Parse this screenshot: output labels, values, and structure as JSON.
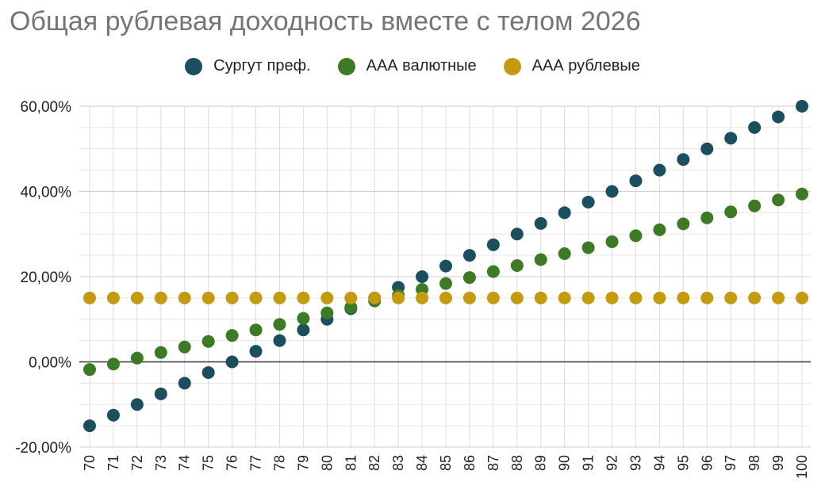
{
  "chart_data": {
    "type": "scatter",
    "title": "Общая рублевая доходность вместе с телом 2026",
    "xlabel": "",
    "ylabel": "",
    "x": [
      "70",
      "71",
      "72",
      "73",
      "74",
      "75",
      "76",
      "77",
      "78",
      "79",
      "80",
      "81",
      "82",
      "83",
      "84",
      "85",
      "86",
      "87",
      "88",
      "89",
      "90",
      "91",
      "92",
      "93",
      "94",
      "95",
      "96",
      "97",
      "98",
      "99",
      "100"
    ],
    "ylim": [
      -20,
      60
    ],
    "ytick_values": [
      -20,
      0,
      20,
      40,
      60
    ],
    "ytick_labels": [
      "-20,00%",
      "0,00%",
      "20,00%",
      "40,00%",
      "60,00%"
    ],
    "grid": true,
    "legend_position": "top-center",
    "series": [
      {
        "name": "Сургут преф.",
        "color": "#1b4f5e",
        "values": [
          -15.0,
          -12.5,
          -10.0,
          -7.5,
          -5.0,
          -2.5,
          0.0,
          2.5,
          5.0,
          7.5,
          10.0,
          12.5,
          15.0,
          17.5,
          20.0,
          22.5,
          25.0,
          27.5,
          30.0,
          32.5,
          35.0,
          37.5,
          40.0,
          42.5,
          45.0,
          47.5,
          50.0,
          52.5,
          55.0,
          57.5,
          60.0
        ]
      },
      {
        "name": "ААА валютные",
        "color": "#3d7a24",
        "values": [
          -1.8,
          -0.5,
          0.9,
          2.2,
          3.5,
          4.8,
          6.2,
          7.5,
          8.8,
          10.2,
          11.5,
          12.8,
          14.3,
          15.6,
          17.0,
          18.4,
          19.8,
          21.2,
          22.6,
          24.0,
          25.4,
          26.8,
          28.2,
          29.6,
          31.0,
          32.4,
          33.8,
          35.2,
          36.6,
          38.0,
          39.4
        ]
      },
      {
        "name": "ААА рублевые",
        "color": "#c49a0e",
        "values": [
          15,
          15,
          15,
          15,
          15,
          15,
          15,
          15,
          15,
          15,
          15,
          15,
          15,
          15,
          15,
          15,
          15,
          15,
          15,
          15,
          15,
          15,
          15,
          15,
          15,
          15,
          15,
          15,
          15,
          15,
          15
        ]
      }
    ]
  }
}
